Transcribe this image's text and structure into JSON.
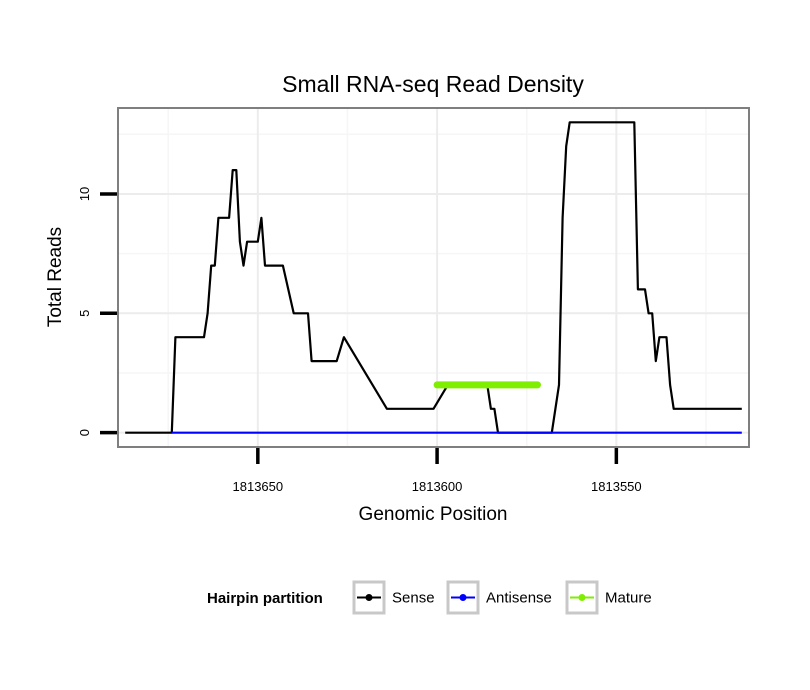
{
  "chart_data": {
    "type": "line",
    "title": "Small RNA-seq Read Density",
    "xlabel": "Genomic Position",
    "ylabel": "Total Reads",
    "xlim": [
      1813689,
      1813513
    ],
    "ylim": [
      -0.6,
      13.6
    ],
    "x_reversed": true,
    "x_ticks": [
      1813650,
      1813600,
      1813550
    ],
    "x_tick_labels": [
      "1813650",
      "1813600",
      "1813550"
    ],
    "y_ticks": [
      0,
      5,
      10
    ],
    "y_tick_labels": [
      "0",
      "5",
      "10"
    ],
    "grid": true,
    "legend": {
      "position": "bottom",
      "title": "Hairpin partition",
      "entries": [
        "Sense",
        "Antisense",
        "Mature"
      ]
    },
    "series": [
      {
        "name": "Sense",
        "color": "#000000",
        "x": [
          1813687,
          1813674,
          1813673,
          1813665,
          1813664,
          1813663,
          1813662,
          1813661,
          1813658,
          1813657,
          1813656,
          1813655,
          1813654,
          1813653,
          1813650,
          1813649,
          1813648,
          1813647,
          1813643,
          1813640,
          1813639,
          1813636,
          1813635,
          1813628,
          1813626,
          1813614,
          1813612,
          1813601,
          1813597,
          1813587,
          1813586,
          1813585,
          1813584,
          1813583,
          1813582,
          1813581,
          1813568,
          1813566,
          1813565,
          1813564,
          1813563,
          1813562,
          1813545,
          1813544,
          1813543,
          1813542,
          1813541,
          1813540,
          1813539,
          1813538,
          1813536,
          1813535,
          1813534,
          1813533,
          1813532,
          1813531,
          1813530,
          1813515
        ],
        "values": [
          0,
          0,
          4,
          4,
          5,
          7,
          7,
          9,
          9,
          11,
          11,
          8,
          7,
          8,
          8,
          9,
          7,
          7,
          7,
          5,
          5,
          5,
          3,
          3,
          4,
          1,
          1,
          1,
          2,
          2,
          2,
          1,
          1,
          0,
          0,
          0,
          0,
          2,
          9,
          12,
          13,
          13,
          13,
          6,
          6,
          6,
          5,
          5,
          3,
          4,
          4,
          2,
          1,
          1,
          1,
          1,
          1,
          1
        ]
      },
      {
        "name": "Antisense",
        "color": "#0000ff",
        "x": [
          1813674,
          1813515
        ],
        "values": [
          0,
          0
        ]
      },
      {
        "name": "Mature",
        "color": "#80ee00",
        "x": [
          1813600,
          1813572
        ],
        "values": [
          2,
          2
        ]
      }
    ]
  }
}
